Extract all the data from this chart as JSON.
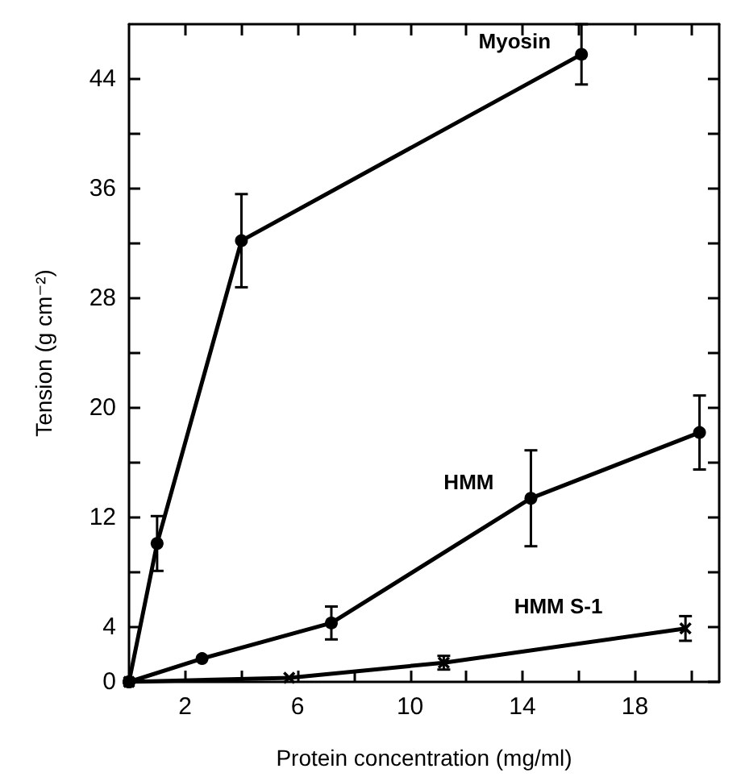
{
  "chart_data": {
    "type": "line",
    "xlabel": "Protein concentration (mg/ml)",
    "ylabel": "Tension (g cm⁻²)",
    "xlim": [
      0,
      21
    ],
    "xticks": [
      2,
      {
        "value": 4,
        "label": null
      },
      6,
      {
        "value": 8,
        "label": null
      },
      10,
      {
        "value": 12,
        "label": null
      },
      14,
      {
        "value": 16,
        "label": null
      },
      18,
      {
        "value": 20,
        "label": null
      }
    ],
    "ylim": [
      0,
      48
    ],
    "yticks": [
      0,
      4,
      {
        "value": 8,
        "label": null
      },
      12,
      {
        "value": 16,
        "label": null
      },
      20,
      {
        "value": 24,
        "label": null
      },
      28,
      {
        "value": 32,
        "label": null
      },
      36,
      {
        "value": 40,
        "label": null
      },
      44
    ],
    "grid": false,
    "line_style": "solid",
    "series": [
      {
        "name": "Myosin",
        "color": "#000000",
        "marker": "circle",
        "x": [
          0,
          1,
          4,
          16.1
        ],
        "values": [
          0,
          10.1,
          32.2,
          45.8
        ],
        "errors": [
          null,
          2,
          3.4,
          2.2
        ]
      },
      {
        "name": "HMM",
        "color": "#000000",
        "marker": "circle",
        "x": [
          0,
          2.6,
          7.2,
          14.3,
          20.3
        ],
        "values": [
          0,
          1.7,
          4.3,
          13.4,
          18.2
        ],
        "errors": [
          null,
          null,
          1.2,
          3.5,
          2.7
        ]
      },
      {
        "name": "HMM S-1",
        "color": "#000000",
        "marker": "cross",
        "x": [
          0,
          5.7,
          11.2,
          19.8
        ],
        "values": [
          0,
          0.3,
          1.4,
          3.9
        ],
        "errors": [
          null,
          null,
          0.5,
          0.9
        ]
      }
    ]
  }
}
